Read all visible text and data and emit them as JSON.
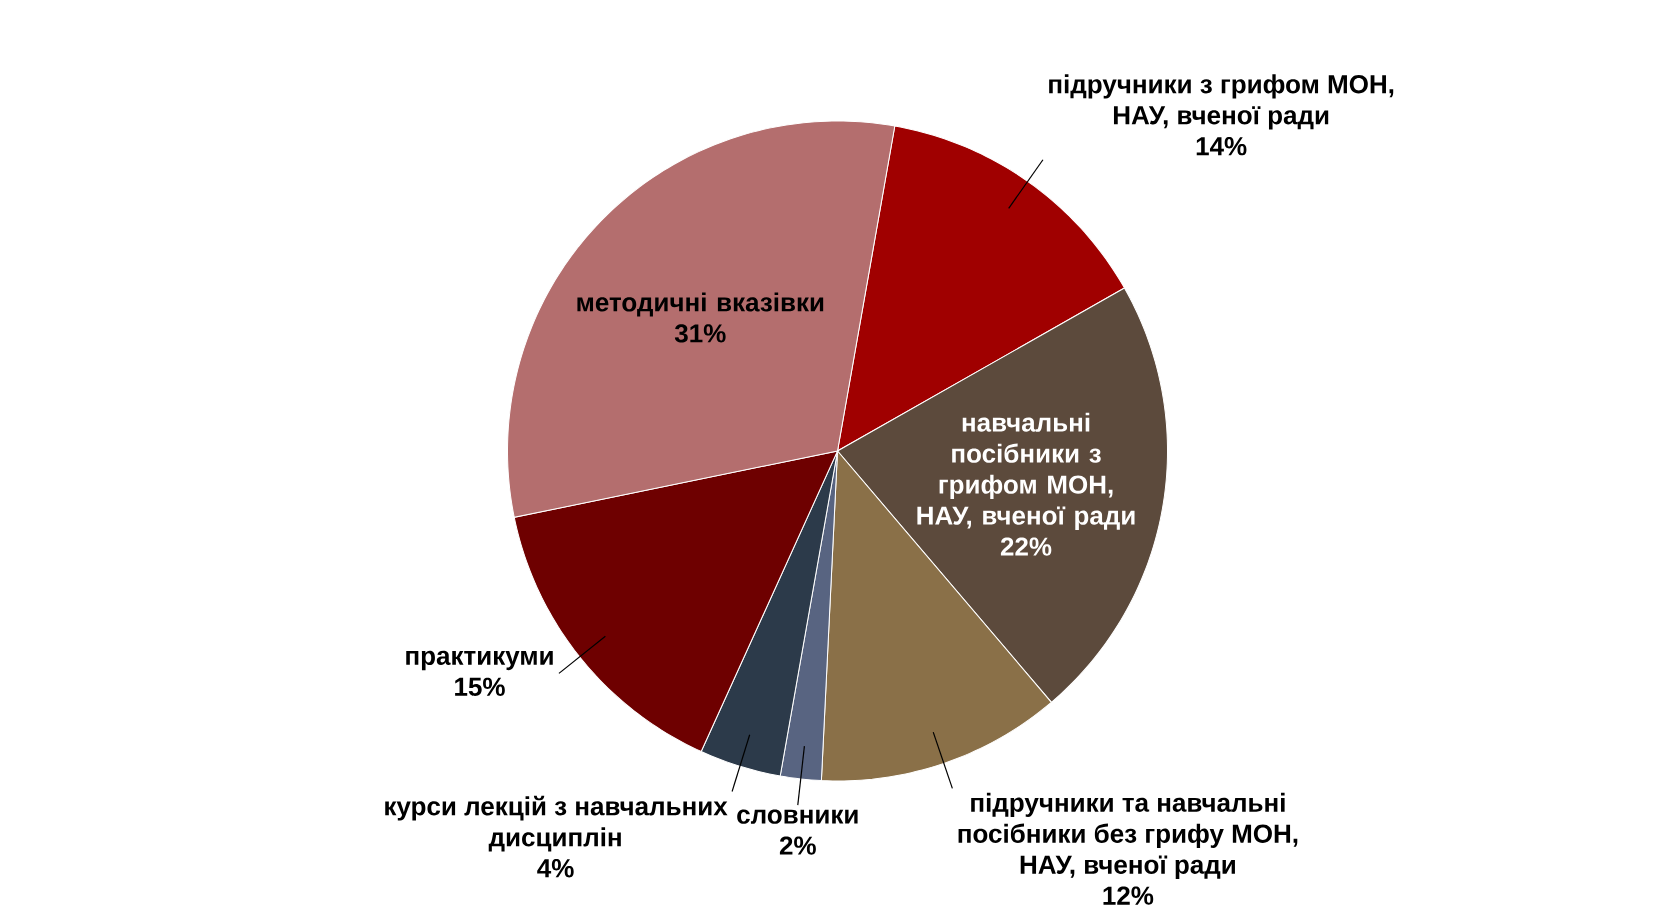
{
  "chart_data": {
    "type": "pie",
    "categories": [
      "підручники з грифом МОН, НАУ, вченої ради",
      "навчальні посібники з грифом МОН, НАУ, вченої ради",
      "підручники та навчальні посібники без грифу МОН, НАУ, вченої ради",
      "словники",
      "курси лекцій з навчальних дисциплін",
      "практикуми",
      "методичні вказівки"
    ],
    "values": [
      14,
      22,
      12,
      2,
      4,
      15,
      31
    ],
    "value_labels": [
      "14%",
      "22%",
      "12%",
      "2%",
      "4%",
      "15%",
      "31%"
    ],
    "colors": [
      "#a00000",
      "#5c4a3c",
      "#8a7048",
      "#586481",
      "#2c3a4a",
      "#6e0000",
      "#b46e6e"
    ]
  }
}
